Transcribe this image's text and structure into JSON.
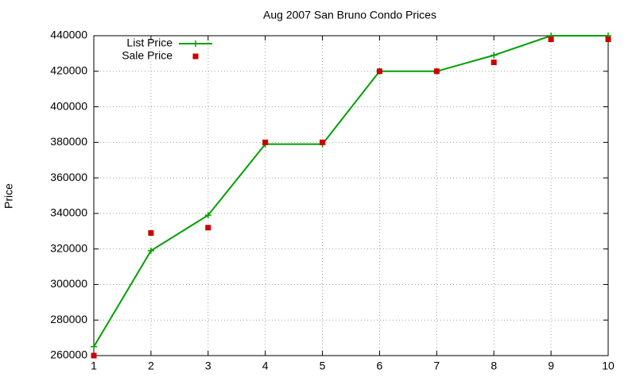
{
  "chart_data": {
    "type": "line",
    "title": "Aug 2007 San Bruno Condo Prices",
    "y_label": "Price",
    "x": [
      1,
      2,
      3,
      4,
      5,
      6,
      7,
      8,
      9,
      10
    ],
    "series": [
      {
        "name": "List Price",
        "color": "#00a000",
        "line": true,
        "marker": "plus",
        "values": [
          265000,
          319000,
          339000,
          379000,
          379000,
          420000,
          420000,
          429000,
          440000,
          440000
        ]
      },
      {
        "name": "Sale Price",
        "color": "#cc0000",
        "line": false,
        "marker": "square",
        "values": [
          260000,
          329000,
          332000,
          380000,
          380000,
          420000,
          420000,
          425000,
          438000,
          438000
        ]
      }
    ],
    "xlim": [
      1,
      10
    ],
    "xticks": [
      1,
      2,
      3,
      4,
      5,
      6,
      7,
      8,
      9,
      10
    ],
    "ylim": [
      260000,
      440000
    ],
    "yticks": [
      260000,
      280000,
      300000,
      320000,
      340000,
      360000,
      380000,
      400000,
      420000,
      440000
    ],
    "grid": true,
    "legend": "top-left"
  }
}
